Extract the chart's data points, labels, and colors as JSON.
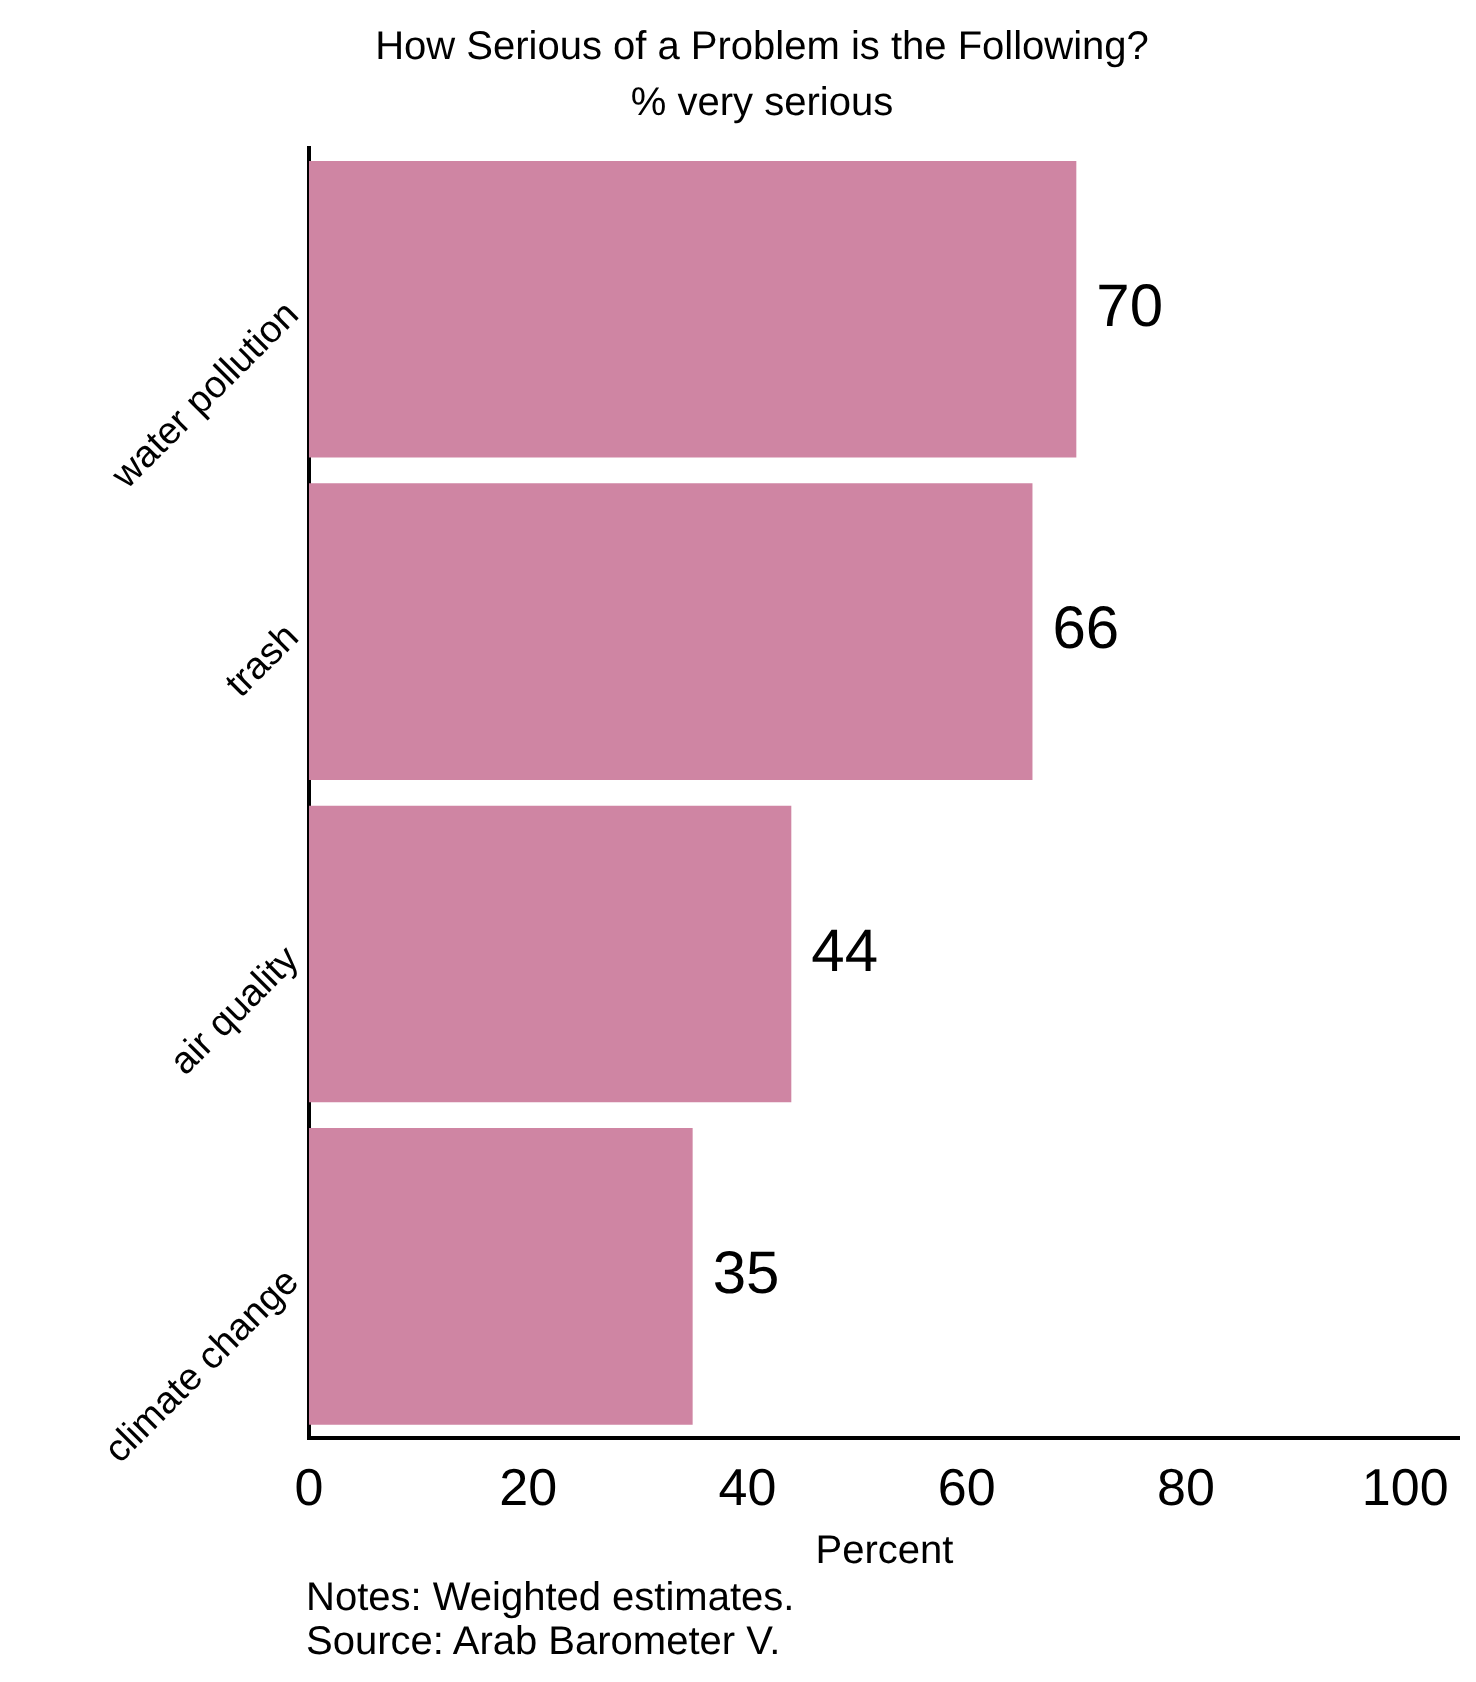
{
  "chart_data": {
    "type": "bar",
    "orientation": "horizontal",
    "title": "How Serious of a Problem is the Following?",
    "subtitle": "% very serious",
    "xlabel": "Percent",
    "categories": [
      "water pollution",
      "trash",
      "air quality",
      "climate change"
    ],
    "values": [
      70,
      66,
      44,
      35
    ],
    "color": "#cf85a3",
    "data_labels": true,
    "xlim": [
      0,
      105
    ],
    "xticks": [
      0,
      20,
      40,
      60,
      80,
      100
    ],
    "grid": false,
    "legend": false,
    "annotations": [
      "Notes: Weighted estimates.",
      "Source: Arab Barometer V."
    ]
  }
}
